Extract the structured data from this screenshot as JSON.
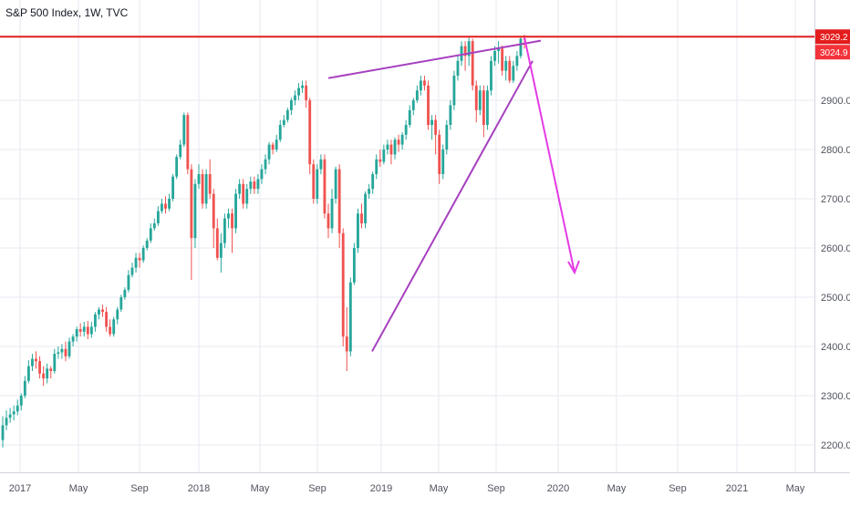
{
  "title": "S&P 500 Index, 1W, TVC",
  "colors": {
    "up": "#26a69a",
    "down": "#ef5350",
    "grid": "#e7eaf0",
    "axis_text": "#50535e",
    "hline": "#e31d1d",
    "trendline": "#a640bf",
    "arrow": "#e43ce6",
    "badge_last": "#f4333a",
    "badge_level": "#e31d1d"
  },
  "chart_data": {
    "type": "candlestick",
    "title": "S&P 500 Index, 1W, TVC",
    "interval": "1W",
    "ylim": [
      2145,
      3040
    ],
    "y_ticks": [
      "2200.0",
      "2300.0",
      "2400.0",
      "2500.0",
      "2600.0",
      "2700.0",
      "2800.0",
      "2900.0"
    ],
    "x_ticks": [
      "2017",
      "May",
      "Sep",
      "2018",
      "May",
      "Sep",
      "2019",
      "May",
      "Sep",
      "2020",
      "May",
      "Sep",
      "2021",
      "May"
    ],
    "grid": true,
    "price_badges": [
      {
        "label": "3029.2",
        "value": 3029.2,
        "role": "horizontal-level"
      },
      {
        "label": "3024.9",
        "value": 3024.9,
        "role": "last-price"
      }
    ],
    "horizontal_line": {
      "value": 3029.2
    },
    "candles": [
      [
        2210,
        2240,
        2195,
        2258
      ],
      [
        2240,
        2255,
        2230,
        2270
      ],
      [
        2255,
        2262,
        2245,
        2275
      ],
      [
        2262,
        2268,
        2250,
        2280
      ],
      [
        2268,
        2280,
        2260,
        2292
      ],
      [
        2280,
        2300,
        2270,
        2305
      ],
      [
        2300,
        2330,
        2295,
        2340
      ],
      [
        2330,
        2360,
        2325,
        2372
      ],
      [
        2360,
        2375,
        2350,
        2385
      ],
      [
        2375,
        2370,
        2355,
        2390
      ],
      [
        2370,
        2345,
        2335,
        2380
      ],
      [
        2345,
        2335,
        2320,
        2360
      ],
      [
        2335,
        2355,
        2325,
        2365
      ],
      [
        2355,
        2350,
        2335,
        2360
      ],
      [
        2350,
        2385,
        2345,
        2395
      ],
      [
        2385,
        2388,
        2375,
        2400
      ],
      [
        2388,
        2395,
        2375,
        2405
      ],
      [
        2395,
        2380,
        2370,
        2410
      ],
      [
        2380,
        2410,
        2375,
        2418
      ],
      [
        2410,
        2420,
        2400,
        2425
      ],
      [
        2420,
        2435,
        2410,
        2440
      ],
      [
        2435,
        2430,
        2420,
        2447
      ],
      [
        2430,
        2440,
        2420,
        2450
      ],
      [
        2440,
        2425,
        2415,
        2452
      ],
      [
        2425,
        2440,
        2418,
        2450
      ],
      [
        2440,
        2465,
        2430,
        2470
      ],
      [
        2465,
        2475,
        2455,
        2480
      ],
      [
        2475,
        2470,
        2460,
        2485
      ],
      [
        2470,
        2440,
        2430,
        2480
      ],
      [
        2440,
        2425,
        2420,
        2455
      ],
      [
        2425,
        2455,
        2420,
        2460
      ],
      [
        2455,
        2475,
        2445,
        2480
      ],
      [
        2475,
        2500,
        2470,
        2505
      ],
      [
        2500,
        2515,
        2495,
        2520
      ],
      [
        2515,
        2545,
        2510,
        2555
      ],
      [
        2545,
        2560,
        2540,
        2570
      ],
      [
        2560,
        2580,
        2550,
        2590
      ],
      [
        2580,
        2575,
        2560,
        2590
      ],
      [
        2575,
        2600,
        2570,
        2605
      ],
      [
        2600,
        2615,
        2595,
        2620
      ],
      [
        2615,
        2640,
        2610,
        2650
      ],
      [
        2640,
        2650,
        2635,
        2660
      ],
      [
        2650,
        2675,
        2645,
        2685
      ],
      [
        2675,
        2690,
        2670,
        2700
      ],
      [
        2690,
        2680,
        2670,
        2705
      ],
      [
        2680,
        2700,
        2675,
        2710
      ],
      [
        2700,
        2745,
        2695,
        2750
      ],
      [
        2745,
        2785,
        2740,
        2790
      ],
      [
        2785,
        2810,
        2780,
        2820
      ],
      [
        2810,
        2870,
        2805,
        2875
      ],
      [
        2870,
        2760,
        2750,
        2875
      ],
      [
        2760,
        2620,
        2535,
        2770
      ],
      [
        2620,
        2730,
        2600,
        2740
      ],
      [
        2730,
        2750,
        2720,
        2770
      ],
      [
        2750,
        2690,
        2680,
        2760
      ],
      [
        2690,
        2750,
        2680,
        2760
      ],
      [
        2750,
        2710,
        2700,
        2780
      ],
      [
        2710,
        2640,
        2600,
        2720
      ],
      [
        2640,
        2580,
        2575,
        2660
      ],
      [
        2580,
        2610,
        2550,
        2630
      ],
      [
        2610,
        2660,
        2600,
        2670
      ],
      [
        2660,
        2670,
        2640,
        2680
      ],
      [
        2670,
        2640,
        2590,
        2680
      ],
      [
        2640,
        2710,
        2630,
        2720
      ],
      [
        2710,
        2730,
        2700,
        2740
      ],
      [
        2730,
        2690,
        2680,
        2740
      ],
      [
        2690,
        2720,
        2680,
        2730
      ],
      [
        2720,
        2735,
        2710,
        2745
      ],
      [
        2735,
        2720,
        2710,
        2745
      ],
      [
        2720,
        2740,
        2710,
        2750
      ],
      [
        2740,
        2760,
        2730,
        2770
      ],
      [
        2760,
        2780,
        2750,
        2790
      ],
      [
        2780,
        2810,
        2770,
        2815
      ],
      [
        2810,
        2800,
        2790,
        2815
      ],
      [
        2800,
        2820,
        2795,
        2830
      ],
      [
        2820,
        2850,
        2815,
        2860
      ],
      [
        2850,
        2860,
        2845,
        2870
      ],
      [
        2860,
        2880,
        2855,
        2885
      ],
      [
        2880,
        2900,
        2870,
        2905
      ],
      [
        2900,
        2910,
        2890,
        2920
      ],
      [
        2910,
        2925,
        2900,
        2935
      ],
      [
        2925,
        2930,
        2915,
        2940
      ],
      [
        2930,
        2900,
        2885,
        2940
      ],
      [
        2900,
        2770,
        2750,
        2905
      ],
      [
        2770,
        2700,
        2690,
        2780
      ],
      [
        2700,
        2760,
        2690,
        2770
      ],
      [
        2760,
        2780,
        2750,
        2790
      ],
      [
        2780,
        2670,
        2660,
        2790
      ],
      [
        2670,
        2640,
        2620,
        2690
      ],
      [
        2640,
        2700,
        2630,
        2720
      ],
      [
        2700,
        2760,
        2690,
        2765
      ],
      [
        2760,
        2630,
        2600,
        2770
      ],
      [
        2630,
        2420,
        2400,
        2640
      ],
      [
        2420,
        2390,
        2350,
        2480
      ],
      [
        2390,
        2530,
        2380,
        2540
      ],
      [
        2530,
        2600,
        2525,
        2610
      ],
      [
        2600,
        2670,
        2590,
        2680
      ],
      [
        2670,
        2650,
        2640,
        2690
      ],
      [
        2650,
        2710,
        2640,
        2715
      ],
      [
        2710,
        2720,
        2700,
        2730
      ],
      [
        2720,
        2750,
        2710,
        2755
      ],
      [
        2750,
        2780,
        2740,
        2790
      ],
      [
        2780,
        2775,
        2765,
        2800
      ],
      [
        2775,
        2800,
        2770,
        2810
      ],
      [
        2800,
        2810,
        2790,
        2820
      ],
      [
        2810,
        2790,
        2770,
        2820
      ],
      [
        2790,
        2820,
        2780,
        2825
      ],
      [
        2820,
        2810,
        2795,
        2830
      ],
      [
        2810,
        2830,
        2800,
        2835
      ],
      [
        2830,
        2850,
        2820,
        2860
      ],
      [
        2850,
        2880,
        2845,
        2890
      ],
      [
        2880,
        2900,
        2870,
        2905
      ],
      [
        2900,
        2920,
        2895,
        2930
      ],
      [
        2920,
        2940,
        2910,
        2950
      ],
      [
        2940,
        2930,
        2920,
        2950
      ],
      [
        2930,
        2850,
        2840,
        2940
      ],
      [
        2850,
        2860,
        2820,
        2870
      ],
      [
        2860,
        2830,
        2790,
        2870
      ],
      [
        2830,
        2750,
        2730,
        2840
      ],
      [
        2750,
        2800,
        2740,
        2810
      ],
      [
        2800,
        2850,
        2790,
        2860
      ],
      [
        2850,
        2890,
        2840,
        2900
      ],
      [
        2890,
        2950,
        2880,
        2960
      ],
      [
        2950,
        2980,
        2940,
        2990
      ],
      [
        2980,
        3010,
        2970,
        3020
      ],
      [
        3010,
        2990,
        2960,
        3020
      ],
      [
        2990,
        3020,
        2970,
        3027
      ],
      [
        3020,
        2930,
        2920,
        3025
      ],
      [
        2930,
        2880,
        2855,
        2940
      ],
      [
        2880,
        2920,
        2870,
        2930
      ],
      [
        2920,
        2850,
        2825,
        2930
      ],
      [
        2850,
        2920,
        2840,
        2930
      ],
      [
        2920,
        2980,
        2910,
        2990
      ],
      [
        2980,
        3000,
        2970,
        3010
      ],
      [
        3000,
        3005,
        2975,
        3020
      ],
      [
        3005,
        2960,
        2950,
        3012
      ],
      [
        2960,
        2980,
        2940,
        2990
      ],
      [
        2980,
        2940,
        2935,
        2990
      ],
      [
        2940,
        2970,
        2935,
        2980
      ],
      [
        2970,
        2990,
        2960,
        3000
      ],
      [
        2990,
        3025,
        2985,
        3030
      ],
      [
        3025,
        3024.9,
        3005,
        3033
      ]
    ],
    "drawings": {
      "upper_trendline": {
        "from": [
          "2018-Sep",
          2945
        ],
        "to": [
          "2019-Nov",
          3021
        ]
      },
      "lower_trendline": {
        "from": [
          "2018-Dec",
          2390
        ],
        "to": [
          "2019-Nov",
          2980
        ]
      },
      "arrow": {
        "from": [
          "2019-Nov",
          3028
        ],
        "to": [
          "2020-Feb",
          2550
        ]
      }
    }
  }
}
